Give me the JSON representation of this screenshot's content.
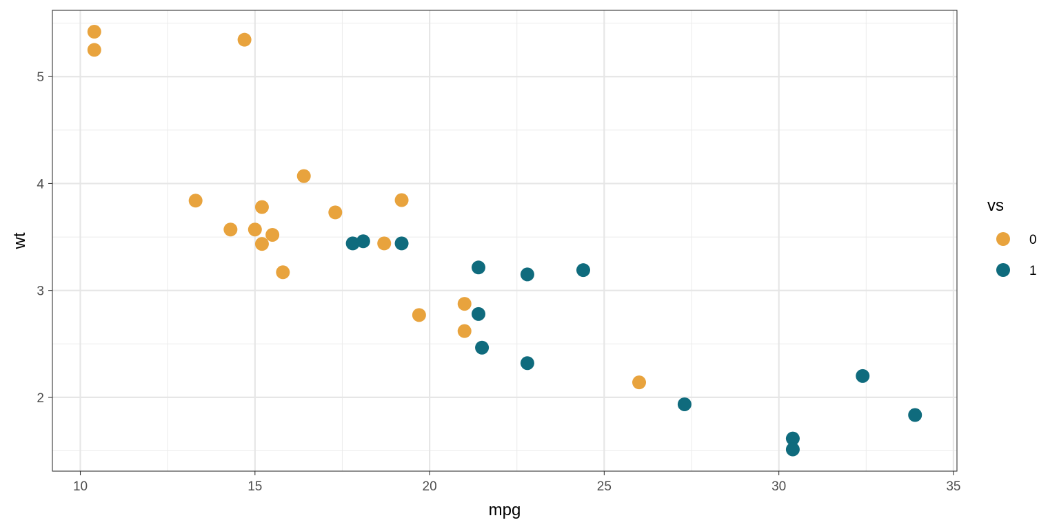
{
  "chart_data": {
    "type": "scatter",
    "title": "",
    "xlabel": "mpg",
    "ylabel": "wt",
    "xlim": [
      9.2,
      35.1
    ],
    "ylim": [
      1.31,
      5.62
    ],
    "x_ticks": [
      10,
      15,
      20,
      25,
      30,
      35
    ],
    "y_ticks": [
      2,
      3,
      4,
      5
    ],
    "grid": true,
    "legend": {
      "title": "vs",
      "position": "right",
      "entries": [
        {
          "label": "0",
          "color": "#E8A33D"
        },
        {
          "label": "1",
          "color": "#0F6B7D"
        }
      ]
    },
    "series": [
      {
        "name": "0",
        "color": "#E8A33D",
        "points": [
          [
            10.4,
            5.42
          ],
          [
            10.4,
            5.25
          ],
          [
            14.7,
            5.345
          ],
          [
            16.4,
            4.07
          ],
          [
            13.3,
            3.84
          ],
          [
            19.2,
            3.845
          ],
          [
            15.2,
            3.78
          ],
          [
            17.3,
            3.73
          ],
          [
            14.3,
            3.57
          ],
          [
            15.0,
            3.57
          ],
          [
            15.5,
            3.52
          ],
          [
            15.2,
            3.435
          ],
          [
            18.7,
            3.44
          ],
          [
            15.8,
            3.17
          ],
          [
            21.0,
            2.875
          ],
          [
            19.7,
            2.77
          ],
          [
            21.0,
            2.62
          ],
          [
            26.0,
            2.14
          ]
        ]
      },
      {
        "name": "1",
        "color": "#0F6B7D",
        "points": [
          [
            17.8,
            3.44
          ],
          [
            18.1,
            3.46
          ],
          [
            19.2,
            3.44
          ],
          [
            21.4,
            3.215
          ],
          [
            22.8,
            3.15
          ],
          [
            24.4,
            3.19
          ],
          [
            21.4,
            2.78
          ],
          [
            21.5,
            2.465
          ],
          [
            22.8,
            2.32
          ],
          [
            27.3,
            1.935
          ],
          [
            32.4,
            2.2
          ],
          [
            33.9,
            1.835
          ],
          [
            30.4,
            1.615
          ],
          [
            30.4,
            1.513
          ]
        ]
      }
    ]
  }
}
